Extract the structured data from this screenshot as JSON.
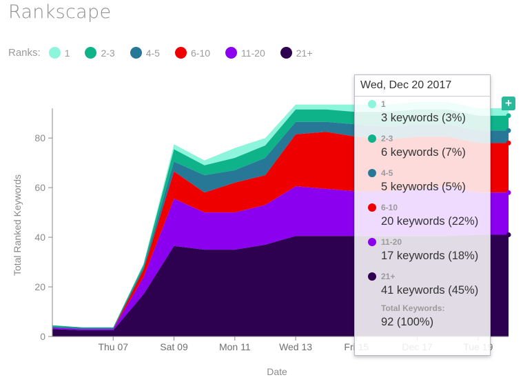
{
  "app": {
    "title": "Rankscape"
  },
  "legend": {
    "label": "Ranks:",
    "items": [
      {
        "label": "1",
        "color": "#8ef5dd"
      },
      {
        "label": "2-3",
        "color": "#0eb38a"
      },
      {
        "label": "4-5",
        "color": "#277796"
      },
      {
        "label": "6-10",
        "color": "#ee0000"
      },
      {
        "label": "11-20",
        "color": "#8b00ee"
      },
      {
        "label": "21+",
        "color": "#2e0050"
      }
    ]
  },
  "tooltip": {
    "date": "Wed, Dec 20 2017",
    "items": [
      {
        "rank": "1",
        "text": "3 keywords (3%)"
      },
      {
        "rank": "2-3",
        "text": "6 keywords (7%)"
      },
      {
        "rank": "4-5",
        "text": "5 keywords (5%)"
      },
      {
        "rank": "6-10",
        "text": "20 keywords (22%)"
      },
      {
        "rank": "11-20",
        "text": "17 keywords (18%)"
      },
      {
        "rank": "21+",
        "text": "41 keywords (45%)"
      }
    ],
    "total_label": "Total Keywords:",
    "total_value": "92 (100%)"
  },
  "add_button": {
    "label": "+",
    "icon": "plus-icon"
  },
  "chart_data": {
    "type": "area",
    "stacked": true,
    "xlabel": "Date",
    "ylabel": "Total Ranked Keywords",
    "ylim": [
      0,
      92
    ],
    "yticks": [
      0,
      20,
      40,
      60,
      80
    ],
    "grid": false,
    "x": [
      "Dec 05",
      "Dec 06",
      "Dec 07",
      "Dec 08",
      "Dec 09",
      "Dec 10",
      "Dec 11",
      "Dec 12",
      "Dec 13",
      "Dec 14",
      "Dec 15",
      "Dec 16",
      "Dec 17",
      "Dec 18",
      "Dec 19",
      "Dec 20"
    ],
    "xtick_labels": [
      {
        "x": "Dec 07",
        "label": "Thu 07"
      },
      {
        "x": "Dec 09",
        "label": "Sat 09"
      },
      {
        "x": "Dec 11",
        "label": "Mon 11"
      },
      {
        "x": "Dec 13",
        "label": "Wed 13"
      },
      {
        "x": "Dec 15",
        "label": "Fri 15"
      },
      {
        "x": "Dec 17",
        "label": "Dec 17"
      },
      {
        "x": "Dec 19",
        "label": "Tue 19"
      }
    ],
    "series": [
      {
        "name": "21+",
        "color": "#2e0050",
        "values": [
          3,
          2.5,
          2.5,
          17,
          36.5,
          35,
          35,
          37,
          40.5,
          40.5,
          40.5,
          40.5,
          40.5,
          40.5,
          41,
          41
        ]
      },
      {
        "name": "11-20",
        "color": "#8b00ee",
        "values": [
          0.5,
          0.5,
          0.5,
          7,
          19,
          15,
          15,
          16,
          20,
          19,
          18,
          18,
          19,
          20,
          17,
          17
        ]
      },
      {
        "name": "6-10",
        "color": "#ee0000",
        "values": [
          0,
          0,
          0,
          3,
          11,
          8,
          12,
          12,
          21,
          23,
          22,
          21,
          21,
          20,
          20,
          20
        ]
      },
      {
        "name": "4-5",
        "color": "#277796",
        "values": [
          0.5,
          0.5,
          0.5,
          1,
          4,
          7,
          5,
          7,
          5,
          4,
          5,
          5,
          5,
          5,
          5,
          5
        ]
      },
      {
        "name": "2-3",
        "color": "#0eb38a",
        "values": [
          0.5,
          0.2,
          0.2,
          1,
          5,
          4,
          5,
          5,
          5,
          5,
          5,
          6,
          6,
          6,
          6,
          6
        ]
      },
      {
        "name": "1",
        "color": "#8ef5dd",
        "values": [
          0,
          0,
          0,
          0.5,
          2,
          2,
          4,
          3,
          2,
          2,
          3,
          3,
          3,
          3,
          3,
          3
        ]
      }
    ]
  }
}
